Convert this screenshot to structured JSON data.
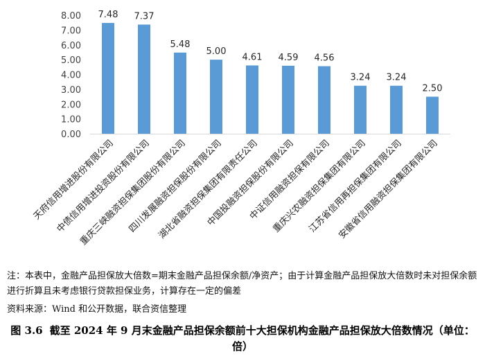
{
  "chart_data": {
    "type": "bar",
    "categories": [
      "天府信用增进股份有限公司",
      "中债信用增进投资股份有限公司",
      "重庆三峡融资担保集团股份有限公司",
      "四川发展融资担保股份有限公司",
      "湖北省融资担保集团有限责任公司",
      "中国投融资担保股份有限公司",
      "中证信用融资担保有限公司",
      "重庆兴农融资担保集团有限公司",
      "江苏省信用再担保集团有限公司",
      "安徽省信用融资担保集团有限公司"
    ],
    "values": [
      7.48,
      7.37,
      5.48,
      5.0,
      4.61,
      4.59,
      4.56,
      3.24,
      3.24,
      2.5
    ],
    "data_labels": [
      "7.48",
      "7.37",
      "5.48",
      "5.00",
      "4.61",
      "4.59",
      "4.56",
      "3.24",
      "3.24",
      "2.50"
    ],
    "yticks": [
      "0.00",
      "1.00",
      "2.00",
      "3.00",
      "4.00",
      "5.00",
      "6.00",
      "7.00",
      "8.00"
    ],
    "ylim": [
      0,
      8
    ],
    "grid": false,
    "legend": "none",
    "bar_color": "#5B9BD5",
    "axis_color": "#D9D9D9"
  },
  "figure": {
    "note": "注：本表中，金融产品担保放大倍数=期末金融产品担保余额/净资产；由于计算金融产品担保放大倍数时未对担保余额进行折算且未考虑银行贷款担保业务，计算存在一定的偏差",
    "source": "资料来源：Wind 和公开数据，联合资信整理",
    "caption_number": "图 3.6",
    "caption_text": "截至 2024 年 9 月末金融产品担保余额前十大担保机构金融产品担保放大倍数情况（单位：倍）"
  }
}
